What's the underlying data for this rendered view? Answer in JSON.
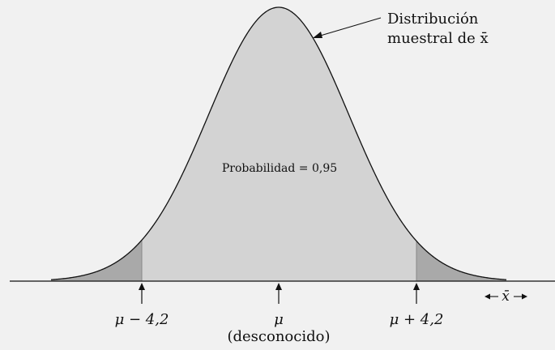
{
  "figure": {
    "curve_label_line1": "Distribución",
    "curve_label_line2": "muestral de x̄",
    "probability_label": "Probabilidad = 0,95",
    "axis_variable": "x̄",
    "markers": [
      {
        "label": "μ − 4,2"
      },
      {
        "label": "μ",
        "sublabel": "(desconocido)"
      },
      {
        "label": "μ + 4,2"
      }
    ],
    "central_probability": 0.95,
    "colors": {
      "background": "#f1f1f1",
      "center_fill": "#d3d3d3",
      "tail_fill": "#a9a9a9",
      "curve": "#111111"
    }
  }
}
